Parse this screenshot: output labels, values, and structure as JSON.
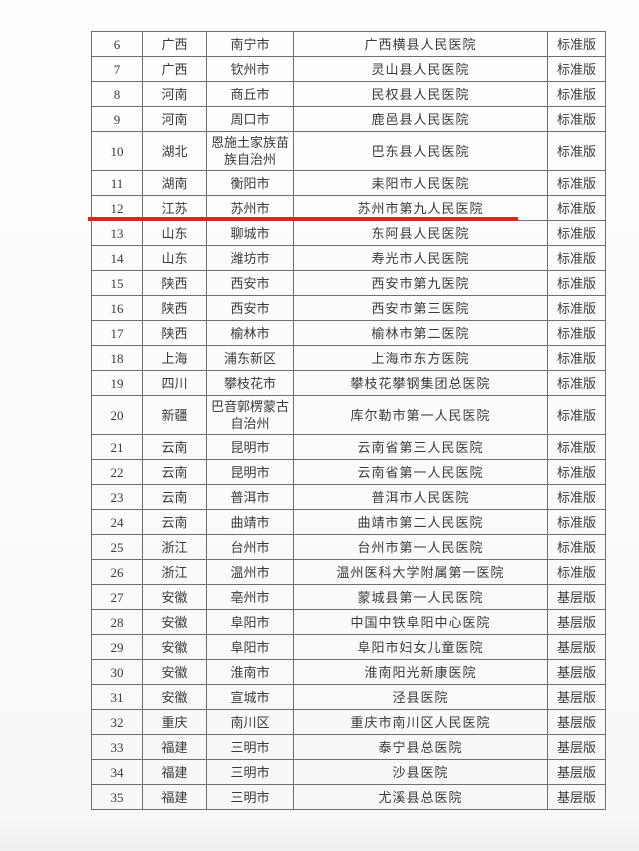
{
  "highlight": {
    "highlighted_row_no": "12",
    "color": "#e2231c"
  },
  "table": {
    "rows": [
      {
        "no": "6",
        "province": "广西",
        "city": "南宁市",
        "hospital": "广西横县人民医院",
        "version": "标准版"
      },
      {
        "no": "7",
        "province": "广西",
        "city": "钦州市",
        "hospital": "灵山县人民医院",
        "version": "标准版"
      },
      {
        "no": "8",
        "province": "河南",
        "city": "商丘市",
        "hospital": "民权县人民医院",
        "version": "标准版"
      },
      {
        "no": "9",
        "province": "河南",
        "city": "周口市",
        "hospital": "鹿邑县人民医院",
        "version": "标准版"
      },
      {
        "no": "10",
        "province": "湖北",
        "city": "恩施土家族苗族自治州",
        "hospital": "巴东县人民医院",
        "version": "标准版"
      },
      {
        "no": "11",
        "province": "湖南",
        "city": "衡阳市",
        "hospital": "耒阳市人民医院",
        "version": "标准版"
      },
      {
        "no": "12",
        "province": "江苏",
        "city": "苏州市",
        "hospital": "苏州市第九人民医院",
        "version": "标准版"
      },
      {
        "no": "13",
        "province": "山东",
        "city": "聊城市",
        "hospital": "东阿县人民医院",
        "version": "标准版"
      },
      {
        "no": "14",
        "province": "山东",
        "city": "潍坊市",
        "hospital": "寿光市人民医院",
        "version": "标准版"
      },
      {
        "no": "15",
        "province": "陕西",
        "city": "西安市",
        "hospital": "西安市第九医院",
        "version": "标准版"
      },
      {
        "no": "16",
        "province": "陕西",
        "city": "西安市",
        "hospital": "西安市第三医院",
        "version": "标准版"
      },
      {
        "no": "17",
        "province": "陕西",
        "city": "榆林市",
        "hospital": "榆林市第二医院",
        "version": "标准版"
      },
      {
        "no": "18",
        "province": "上海",
        "city": "浦东新区",
        "hospital": "上海市东方医院",
        "version": "标准版"
      },
      {
        "no": "19",
        "province": "四川",
        "city": "攀枝花市",
        "hospital": "攀枝花攀钢集团总医院",
        "version": "标准版"
      },
      {
        "no": "20",
        "province": "新疆",
        "city": "巴音郭楞蒙古自治州",
        "hospital": "库尔勒市第一人民医院",
        "version": "标准版"
      },
      {
        "no": "21",
        "province": "云南",
        "city": "昆明市",
        "hospital": "云南省第三人民医院",
        "version": "标准版"
      },
      {
        "no": "22",
        "province": "云南",
        "city": "昆明市",
        "hospital": "云南省第一人民医院",
        "version": "标准版"
      },
      {
        "no": "23",
        "province": "云南",
        "city": "普洱市",
        "hospital": "普洱市人民医院",
        "version": "标准版"
      },
      {
        "no": "24",
        "province": "云南",
        "city": "曲靖市",
        "hospital": "曲靖市第二人民医院",
        "version": "标准版"
      },
      {
        "no": "25",
        "province": "浙江",
        "city": "台州市",
        "hospital": "台州市第一人民医院",
        "version": "标准版"
      },
      {
        "no": "26",
        "province": "浙江",
        "city": "温州市",
        "hospital": "温州医科大学附属第一医院",
        "version": "标准版"
      },
      {
        "no": "27",
        "province": "安徽",
        "city": "亳州市",
        "hospital": "蒙城县第一人民医院",
        "version": "基层版"
      },
      {
        "no": "28",
        "province": "安徽",
        "city": "阜阳市",
        "hospital": "中国中铁阜阳中心医院",
        "version": "基层版"
      },
      {
        "no": "29",
        "province": "安徽",
        "city": "阜阳市",
        "hospital": "阜阳市妇女儿童医院",
        "version": "基层版"
      },
      {
        "no": "30",
        "province": "安徽",
        "city": "淮南市",
        "hospital": "淮南阳光新康医院",
        "version": "基层版"
      },
      {
        "no": "31",
        "province": "安徽",
        "city": "宣城市",
        "hospital": "泾县医院",
        "version": "基层版"
      },
      {
        "no": "32",
        "province": "重庆",
        "city": "南川区",
        "hospital": "重庆市南川区人民医院",
        "version": "基层版"
      },
      {
        "no": "33",
        "province": "福建",
        "city": "三明市",
        "hospital": "泰宁县总医院",
        "version": "基层版"
      },
      {
        "no": "34",
        "province": "福建",
        "city": "三明市",
        "hospital": "沙县医院",
        "version": "基层版"
      },
      {
        "no": "35",
        "province": "福建",
        "city": "三明市",
        "hospital": "尤溪县总医院",
        "version": "基层版"
      }
    ]
  }
}
